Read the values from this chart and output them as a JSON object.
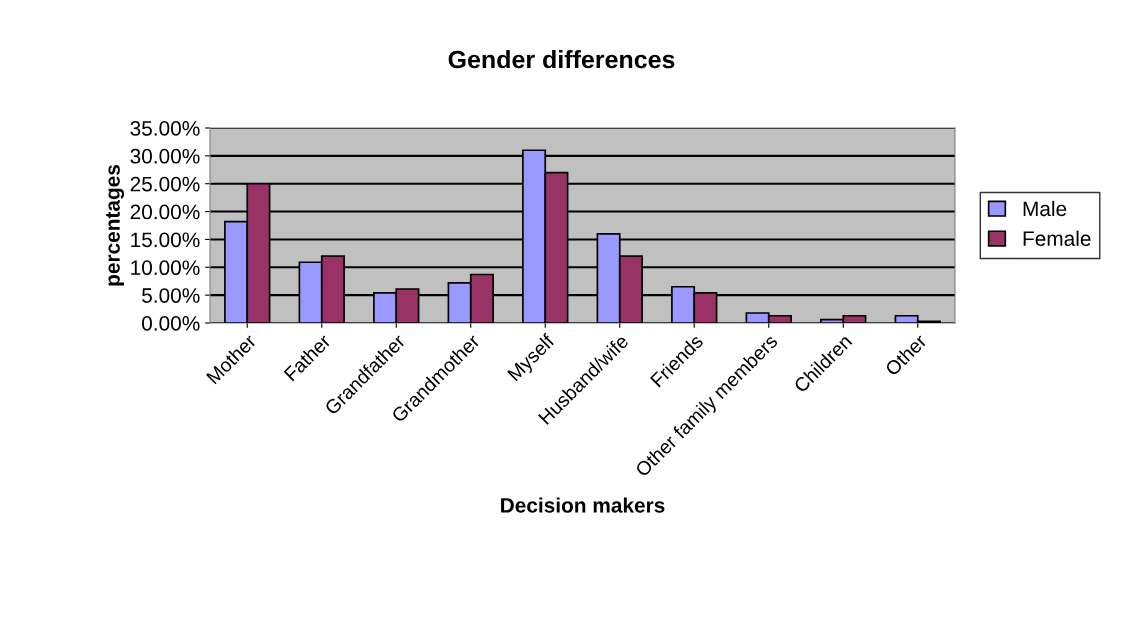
{
  "chart_data": {
    "type": "bar",
    "title": "Gender differences",
    "xlabel": "Decision makers",
    "ylabel": "percentages",
    "categories": [
      "Mother",
      "Father",
      "Grandfather",
      "Grandmother",
      "Myself",
      "Husband/wife",
      "Friends",
      "Other family members",
      "Children",
      "Other"
    ],
    "series": [
      {
        "name": "Male",
        "color": "#9999ff",
        "values": [
          18.2,
          10.9,
          5.4,
          7.2,
          31.0,
          16.0,
          6.5,
          1.8,
          0.6,
          1.3
        ]
      },
      {
        "name": "Female",
        "color": "#993366",
        "values": [
          25.0,
          12.0,
          6.1,
          8.7,
          27.0,
          12.0,
          5.4,
          1.3,
          1.3,
          0.3
        ]
      }
    ],
    "ylim": [
      0,
      35
    ],
    "yticks": [
      {
        "value": 0,
        "label": "0.00%"
      },
      {
        "value": 5,
        "label": "5.00%"
      },
      {
        "value": 10,
        "label": "10.00%"
      },
      {
        "value": 15,
        "label": "15.00%"
      },
      {
        "value": 20,
        "label": "20.00%"
      },
      {
        "value": 25,
        "label": "25.00%"
      },
      {
        "value": 30,
        "label": "30.00%"
      },
      {
        "value": 35,
        "label": "35.00%"
      }
    ],
    "grid": "y",
    "legend": "right"
  }
}
